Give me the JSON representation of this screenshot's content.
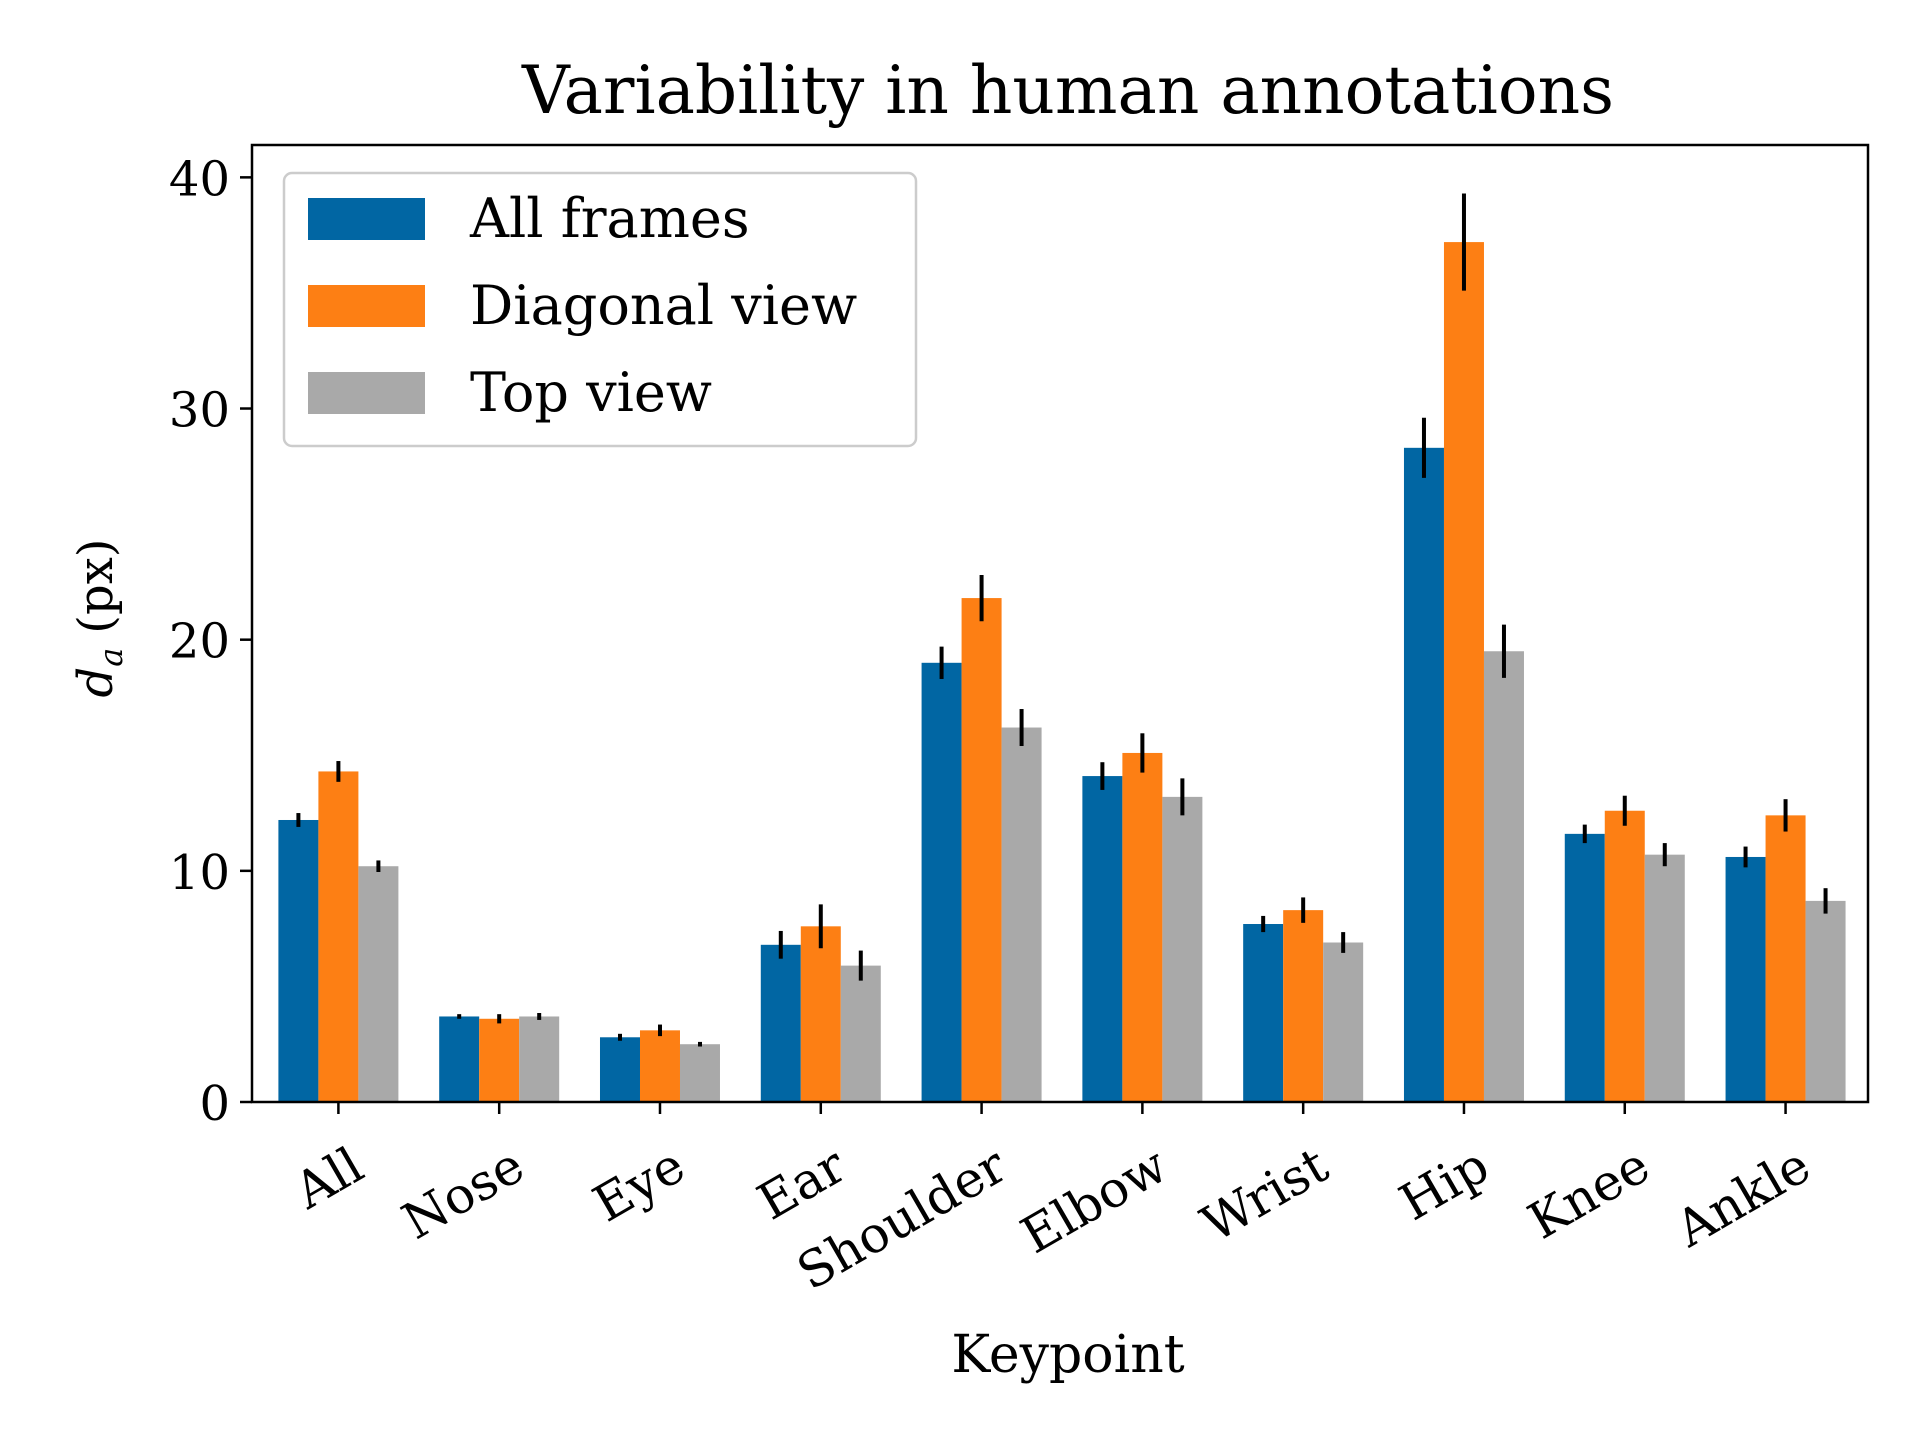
{
  "chart_data": {
    "type": "bar",
    "title": "Variability in human annotations",
    "xlabel": "Keypoint",
    "ylabel_main": "d",
    "ylabel_sub": "a",
    "ylabel_unit": "(px)",
    "ylim": [
      0,
      41.4
    ],
    "yticks": [
      0,
      10,
      20,
      30,
      40
    ],
    "ytick_labels": [
      "0",
      "10",
      "20",
      "30",
      "40"
    ],
    "categories": [
      "All",
      "Nose",
      "Eye",
      "Ear",
      "Shoulder",
      "Elbow",
      "Wrist",
      "Hip",
      "Knee",
      "Ankle"
    ],
    "series": [
      {
        "name": "All frames",
        "color": "#0166A3",
        "values": [
          12.2,
          3.7,
          2.8,
          6.8,
          19.0,
          14.1,
          7.7,
          28.3,
          11.6,
          10.6
        ],
        "errors": [
          0.3,
          0.1,
          0.15,
          0.6,
          0.7,
          0.6,
          0.35,
          1.3,
          0.4,
          0.45
        ]
      },
      {
        "name": "Diagonal view",
        "color": "#FD7F14",
        "values": [
          14.3,
          3.6,
          3.1,
          7.6,
          21.8,
          15.1,
          8.3,
          37.2,
          12.6,
          12.4
        ],
        "errors": [
          0.45,
          0.2,
          0.25,
          0.95,
          1.0,
          0.85,
          0.55,
          2.1,
          0.65,
          0.7
        ]
      },
      {
        "name": "Top view",
        "color": "#A9A9A9",
        "values": [
          10.2,
          3.7,
          2.5,
          5.9,
          16.2,
          13.2,
          6.9,
          19.5,
          10.7,
          8.7
        ],
        "errors": [
          0.25,
          0.15,
          0.1,
          0.65,
          0.8,
          0.8,
          0.45,
          1.15,
          0.5,
          0.55
        ]
      }
    ],
    "legend_position": "upper-left",
    "grid": false
  }
}
